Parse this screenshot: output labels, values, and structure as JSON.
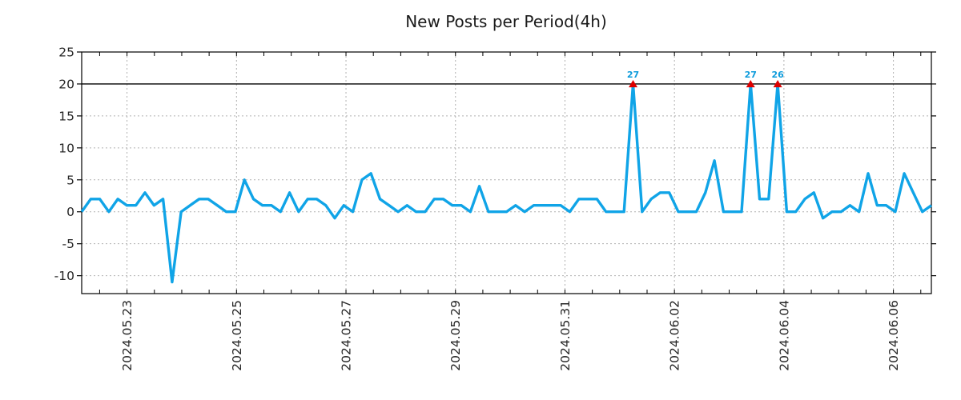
{
  "chart_data": {
    "type": "line",
    "title": "New Posts per Period(4h)",
    "period_hours_label": "4h",
    "x_tick_labels": [
      "2024.05.23",
      "2024.05.25",
      "2024.05.27",
      "2024.05.29",
      "2024.05.31",
      "2024.06.02",
      "2024.06.04",
      "2024.06.06"
    ],
    "y_ticks": [
      25,
      20,
      15,
      10,
      5,
      0,
      -5,
      -10
    ],
    "ylim": [
      -12.8,
      25
    ],
    "clip_line_value": 20,
    "grid": true,
    "legend": false,
    "values": [
      0,
      2,
      2,
      0,
      2,
      1,
      1,
      3,
      1,
      2,
      -11,
      0,
      1,
      2,
      2,
      1,
      0,
      0,
      5,
      2,
      1,
      1,
      0,
      3,
      0,
      2,
      2,
      1,
      -1,
      1,
      0,
      5,
      6,
      2,
      1,
      0,
      1,
      0,
      0,
      2,
      2,
      1,
      1,
      0,
      4,
      0,
      0,
      0,
      1,
      0,
      1,
      1,
      1,
      1,
      0,
      2,
      2,
      2,
      0,
      0,
      0,
      27,
      0,
      2,
      3,
      3,
      0,
      0,
      0,
      3,
      8,
      0,
      0,
      0,
      27,
      2,
      2,
      26,
      0,
      0,
      2,
      3,
      -1,
      0,
      0,
      1,
      0,
      6,
      1,
      1,
      0,
      6,
      3,
      0,
      1
    ],
    "annotations": [
      {
        "index": 61,
        "label": "27",
        "value": 27
      },
      {
        "index": 74,
        "label": "27",
        "value": 27
      },
      {
        "index": 77,
        "label": "26",
        "value": 26
      }
    ],
    "colors": {
      "line": "#10a4e7",
      "marker": "#dd0000",
      "annotation_text": "#0d9bdb",
      "grid": "#b0b0b0",
      "axis": "#000000",
      "clip_line": "#000000",
      "tick_text": "#262626",
      "title_text": "#1a1a1a",
      "background": "#ffffff"
    }
  }
}
